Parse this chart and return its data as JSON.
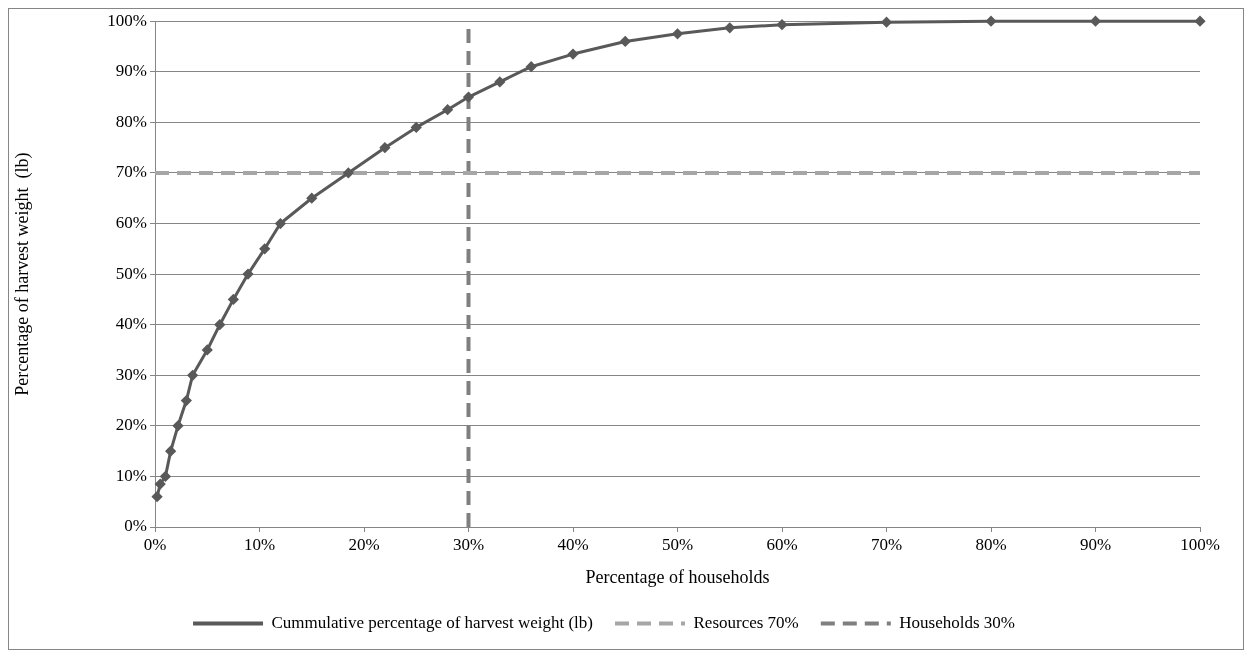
{
  "chart_data": {
    "type": "line",
    "xlabel": "Percentage of households",
    "ylabel": "Percentage of harvest weight  (lb)",
    "x": [
      0.2,
      0.5,
      1,
      1.5,
      2.2,
      3,
      3.6,
      5,
      6.2,
      7.5,
      8.9,
      10.5,
      12,
      15,
      18.5,
      22,
      25,
      28,
      30,
      33,
      36,
      40,
      45,
      50,
      55,
      60,
      70,
      80,
      90,
      100
    ],
    "series": [
      {
        "name": "Cummulative percentage of harvest weight (lb)",
        "color": "#595959",
        "values": [
          6,
          8.5,
          10,
          15,
          20,
          25,
          30,
          35,
          40,
          45,
          50,
          55,
          60,
          65,
          70,
          75,
          79,
          82.5,
          85,
          88,
          91,
          93.5,
          96,
          97.5,
          98.7,
          99.3,
          99.8,
          100,
          100,
          100
        ]
      }
    ],
    "marker": "diamond",
    "line_style": "solid",
    "ref_lines": [
      {
        "axis": "y",
        "value": 70,
        "label": "Resources 70%",
        "color": "#a6a6a6",
        "line_style": "dashed"
      },
      {
        "axis": "x",
        "value": 30,
        "label": "Households 30%",
        "color": "#7f7f7f",
        "line_style": "dashed"
      }
    ],
    "xlim": [
      0,
      100
    ],
    "ylim": [
      0,
      100
    ],
    "xticks": [
      {
        "value": 0,
        "label": "0%"
      },
      {
        "value": 10,
        "label": "10%"
      },
      {
        "value": 20,
        "label": "20%"
      },
      {
        "value": 30,
        "label": "30%"
      },
      {
        "value": 40,
        "label": "40%"
      },
      {
        "value": 50,
        "label": "50%"
      },
      {
        "value": 60,
        "label": "60%"
      },
      {
        "value": 70,
        "label": "70%"
      },
      {
        "value": 80,
        "label": "80%"
      },
      {
        "value": 90,
        "label": "90%"
      },
      {
        "value": 100,
        "label": "100%"
      }
    ],
    "yticks": [
      {
        "value": 0,
        "label": "0%"
      },
      {
        "value": 10,
        "label": "10%"
      },
      {
        "value": 20,
        "label": "20%"
      },
      {
        "value": 30,
        "label": "30%"
      },
      {
        "value": 40,
        "label": "40%"
      },
      {
        "value": 50,
        "label": "50%"
      },
      {
        "value": 60,
        "label": "60%"
      },
      {
        "value": 70,
        "label": "70%"
      },
      {
        "value": 80,
        "label": "80%"
      },
      {
        "value": 90,
        "label": "90%"
      },
      {
        "value": 100,
        "label": "100%"
      }
    ],
    "grid": "y",
    "legend": "bottom"
  }
}
